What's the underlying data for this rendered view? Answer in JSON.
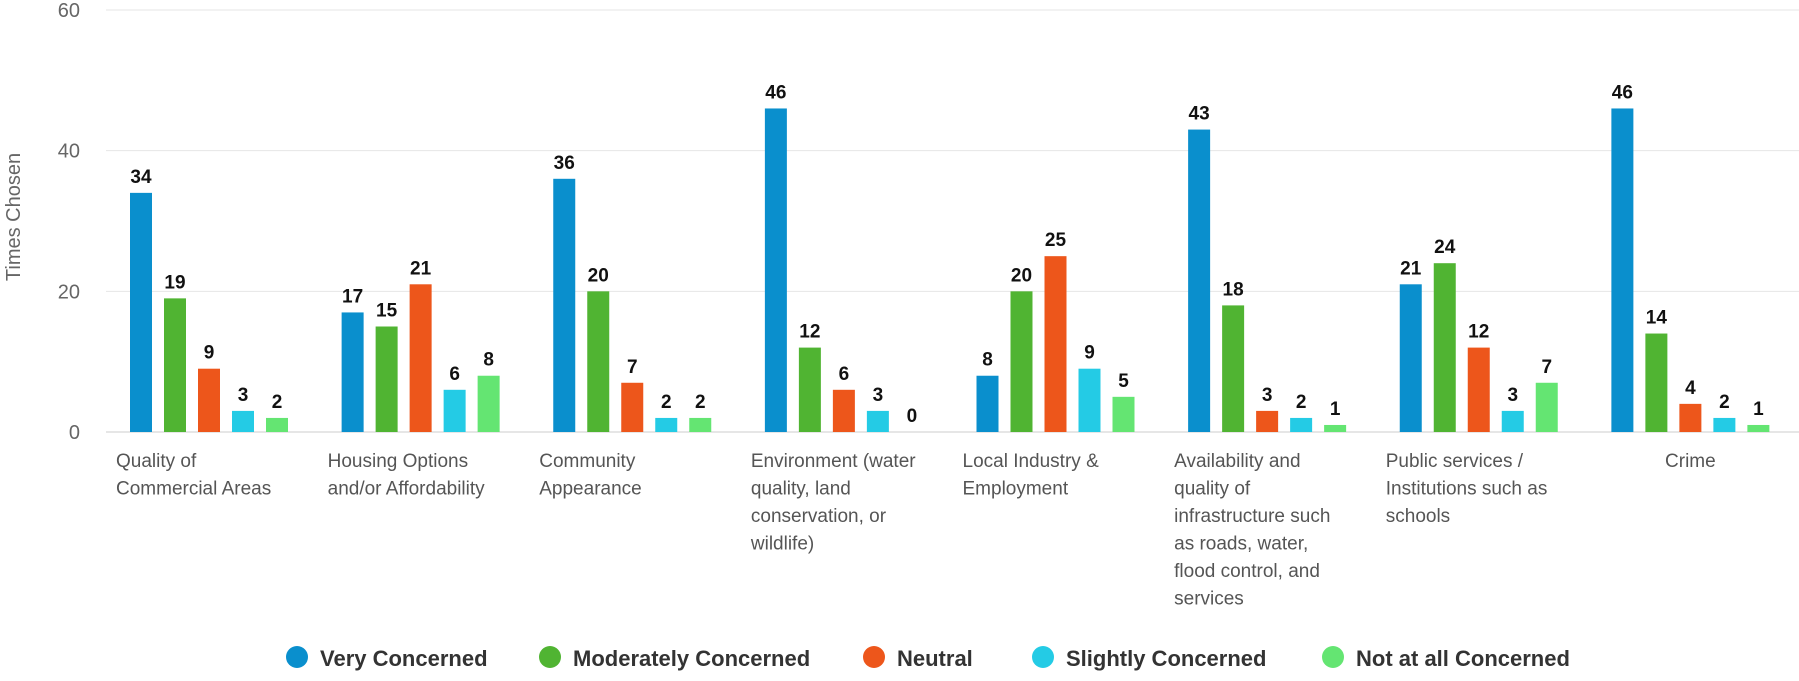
{
  "chart_data": {
    "type": "bar",
    "title": "",
    "xlabel": "",
    "ylabel": "Times Chosen",
    "ylim": [
      0,
      60
    ],
    "yticks": [
      0,
      20,
      40,
      60
    ],
    "grid": true,
    "legend_position": "bottom",
    "categories": [
      [
        "Quality of",
        "Commercial Areas"
      ],
      [
        "Housing Options",
        "and/or Affordability"
      ],
      [
        "Community",
        "Appearance"
      ],
      [
        "Environment (water",
        "quality, land",
        "conservation, or",
        "wildlife)"
      ],
      [
        "Local Industry &",
        "Employment"
      ],
      [
        "Availability and",
        "quality of",
        "infrastructure such",
        "as roads, water,",
        "flood control, and",
        "services"
      ],
      [
        "Public services /",
        "Institutions such as",
        "schools"
      ],
      [
        "Crime"
      ]
    ],
    "series": [
      {
        "name": "Very Concerned",
        "color": "#0a8fcd",
        "values": [
          34,
          17,
          36,
          46,
          8,
          43,
          21,
          46
        ]
      },
      {
        "name": "Moderately Concerned",
        "color": "#50b432",
        "values": [
          19,
          15,
          20,
          12,
          20,
          18,
          24,
          14
        ]
      },
      {
        "name": "Neutral",
        "color": "#ed561b",
        "values": [
          9,
          21,
          7,
          6,
          25,
          3,
          12,
          4
        ]
      },
      {
        "name": "Slightly Concerned",
        "color": "#24cbe5",
        "values": [
          3,
          6,
          2,
          3,
          9,
          2,
          3,
          2
        ]
      },
      {
        "name": "Not at all Concerned",
        "color": "#64e572",
        "values": [
          2,
          8,
          2,
          0,
          5,
          1,
          7,
          1
        ]
      }
    ]
  }
}
